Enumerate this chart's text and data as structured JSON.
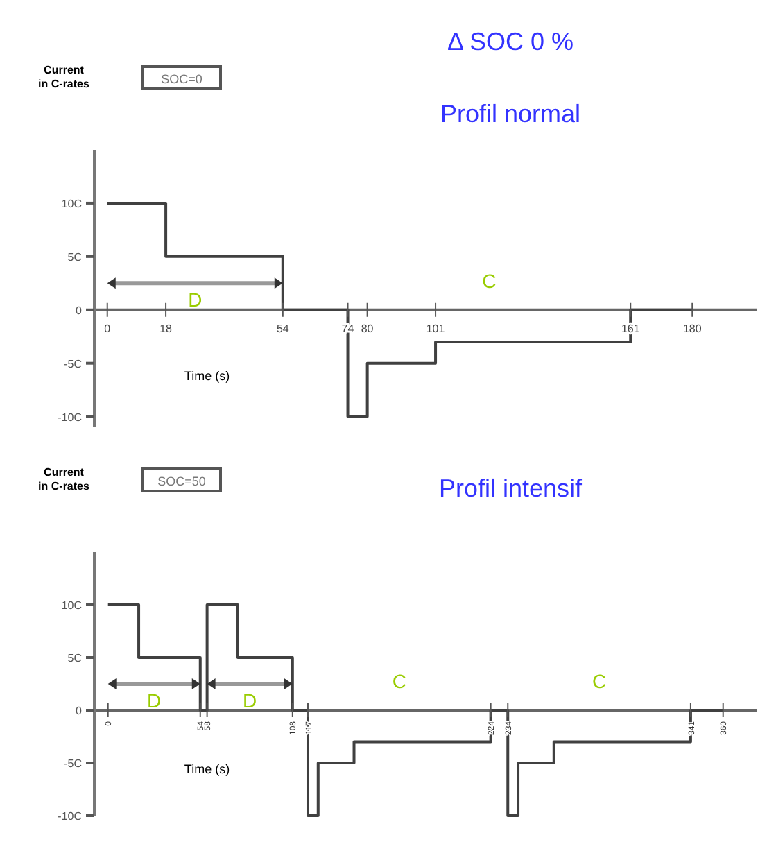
{
  "chart_data": [
    {
      "type": "step",
      "title": "Δ SOC 0 %",
      "subtitle": "Profil normal",
      "ylabel": "Current in C-rates",
      "xlabel": "Time (s)",
      "x": [
        0,
        18,
        54,
        74,
        80,
        101,
        161,
        180
      ],
      "series": [
        {
          "color": "#404040",
          "values": [
            10,
            5,
            0,
            -10,
            -5,
            -3,
            0,
            0
          ]
        }
      ],
      "xlim": [
        -4,
        200
      ],
      "xticks": [
        0,
        18,
        54,
        74,
        80,
        101,
        161,
        180
      ],
      "ylim": [
        -11,
        15
      ],
      "yticks": [
        {
          "value": 10,
          "label": "10C"
        },
        {
          "value": 5,
          "label": "5C"
        },
        0,
        {
          "value": -5,
          "label": "-5C"
        },
        {
          "value": -10,
          "label": "-10C"
        }
      ],
      "annotations": [
        "SOC=0",
        "D",
        "C"
      ],
      "grid": false
    },
    {
      "type": "step",
      "title": "Profil intensif",
      "ylabel": "Current in C-rates",
      "xlabel": "Time (s)",
      "x": [
        0,
        18,
        54,
        58,
        76,
        108,
        117,
        123,
        144,
        224,
        234,
        240,
        261,
        341,
        360
      ],
      "series": [
        {
          "color": "#404040",
          "values": [
            10,
            5,
            0,
            10,
            5,
            0,
            -10,
            -5,
            -3,
            0,
            -10,
            -5,
            -3,
            0,
            0
          ]
        }
      ],
      "xlim": [
        -8,
        380
      ],
      "xticks": [
        0,
        54,
        58,
        108,
        117,
        224,
        234,
        341,
        360
      ],
      "ylim": [
        -10,
        15
      ],
      "yticks": [
        {
          "value": 10,
          "label": "10C"
        },
        {
          "value": 5,
          "label": "5C"
        },
        0,
        {
          "value": -5,
          "label": "-5C"
        },
        {
          "value": -10,
          "label": "-10C"
        }
      ],
      "annotations": [
        "SOC=50",
        "D",
        "D",
        "C",
        "C"
      ],
      "grid": false
    }
  ]
}
